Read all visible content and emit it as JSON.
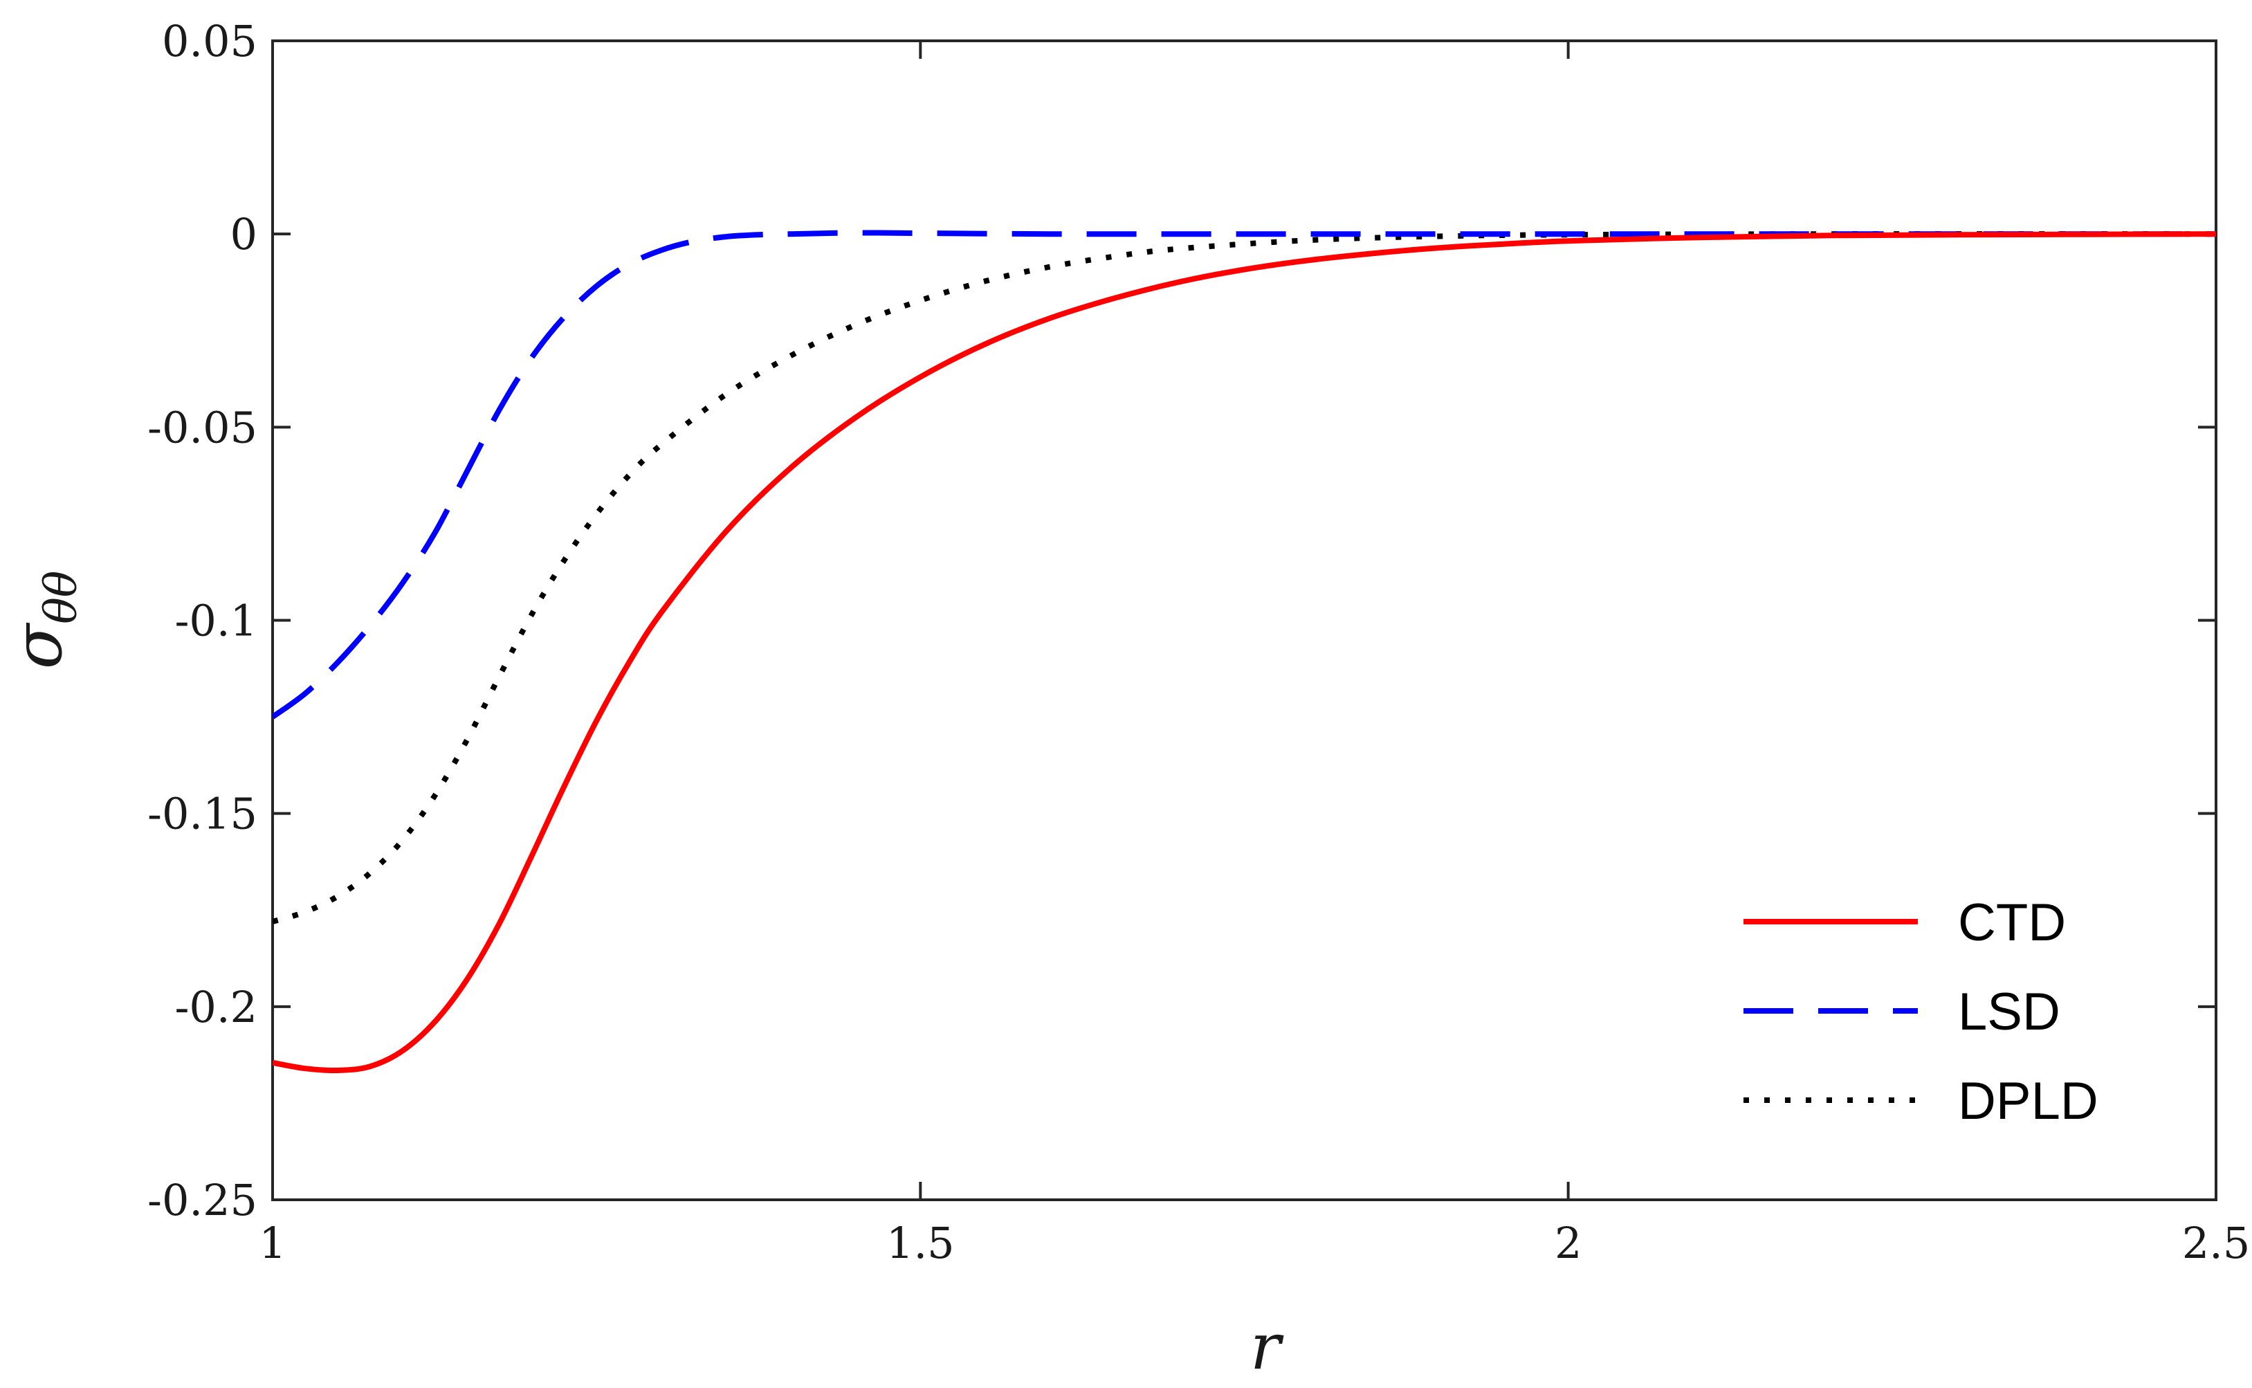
{
  "chart_data": {
    "type": "line",
    "title": "",
    "xlabel": "r",
    "ylabel_symbol": "σ",
    "ylabel_subscript": "θθ",
    "xlim": [
      1,
      2.5
    ],
    "ylim": [
      -0.25,
      0.05
    ],
    "x_ticks": [
      1,
      1.5,
      2,
      2.5
    ],
    "x_tick_labels": [
      "1",
      "1.5",
      "2",
      "2.5"
    ],
    "y_ticks": [
      0.05,
      0,
      -0.05,
      -0.1,
      -0.15,
      -0.2,
      -0.25
    ],
    "y_tick_labels": [
      "0.05",
      "0",
      "-0.05",
      "-0.1",
      "-0.15",
      "-0.2",
      "-0.25"
    ],
    "grid": false,
    "legend_position": "bottom-right",
    "series": [
      {
        "name": "CTD",
        "color": "#ff0000",
        "style": "solid",
        "x": [
          1.0,
          1.025,
          1.05,
          1.075,
          1.1,
          1.125,
          1.15,
          1.175,
          1.2,
          1.225,
          1.25,
          1.275,
          1.3,
          1.35,
          1.4,
          1.45,
          1.5,
          1.55,
          1.6,
          1.65,
          1.7,
          1.75,
          1.8,
          1.85,
          1.9,
          1.95,
          2.0,
          2.1,
          2.2,
          2.3,
          2.4,
          2.5
        ],
        "y": [
          -0.2145,
          -0.216,
          -0.2165,
          -0.2155,
          -0.2115,
          -0.204,
          -0.193,
          -0.1785,
          -0.161,
          -0.143,
          -0.126,
          -0.111,
          -0.098,
          -0.077,
          -0.0605,
          -0.0475,
          -0.037,
          -0.0285,
          -0.0218,
          -0.0166,
          -0.0124,
          -0.0092,
          -0.0068,
          -0.005,
          -0.0036,
          -0.0026,
          -0.0018,
          -0.0009,
          -0.0004,
          -0.0002,
          -0.0001,
          0.0
        ]
      },
      {
        "name": "LSD",
        "color": "#0000ff",
        "style": "dashed",
        "x": [
          1.0,
          1.025,
          1.05,
          1.075,
          1.1,
          1.125,
          1.15,
          1.175,
          1.2,
          1.225,
          1.25,
          1.275,
          1.3,
          1.325,
          1.35,
          1.375,
          1.4,
          1.45,
          1.5,
          1.6,
          1.7,
          1.8,
          2.0,
          2.2,
          2.5
        ],
        "y": [
          -0.125,
          -0.119,
          -0.111,
          -0.1015,
          -0.0905,
          -0.0775,
          -0.0615,
          -0.0455,
          -0.032,
          -0.0215,
          -0.0135,
          -0.0078,
          -0.0042,
          -0.0019,
          -0.0007,
          -0.0002,
          0.0,
          0.0003,
          0.0002,
          0.0,
          0.0,
          0.0,
          0.0,
          0.0,
          0.0
        ]
      },
      {
        "name": "DPLD",
        "color": "#000000",
        "style": "dotted",
        "x": [
          1.0,
          1.025,
          1.05,
          1.075,
          1.1,
          1.125,
          1.15,
          1.175,
          1.2,
          1.225,
          1.25,
          1.275,
          1.3,
          1.35,
          1.4,
          1.45,
          1.5,
          1.55,
          1.6,
          1.65,
          1.7,
          1.8,
          1.9,
          2.0,
          2.2,
          2.5
        ],
        "y": [
          -0.178,
          -0.1755,
          -0.1715,
          -0.1655,
          -0.157,
          -0.1455,
          -0.131,
          -0.1145,
          -0.0985,
          -0.0845,
          -0.0725,
          -0.0625,
          -0.0545,
          -0.0415,
          -0.0315,
          -0.0235,
          -0.0172,
          -0.0122,
          -0.0085,
          -0.0058,
          -0.0038,
          -0.0016,
          -0.0006,
          -0.0002,
          0.0,
          0.0
        ]
      }
    ]
  }
}
